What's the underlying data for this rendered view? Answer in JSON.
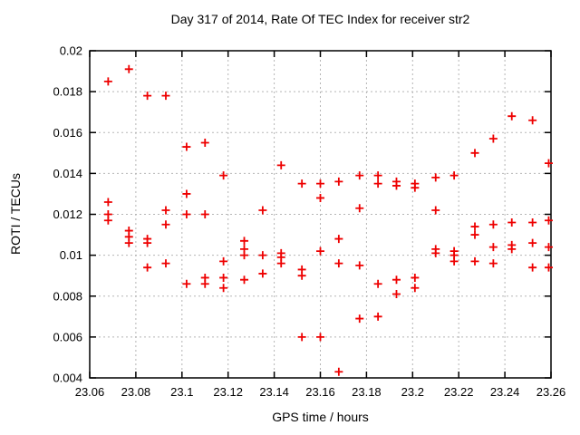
{
  "chart_data": {
    "type": "scatter",
    "title": "Day 317 of 2014, Rate Of TEC Index for receiver str2",
    "xlabel": "GPS time / hours",
    "ylabel": "ROTI / TECUs",
    "xlim": [
      23.06,
      23.26
    ],
    "ylim": [
      0.004,
      0.02
    ],
    "x_tick_values": [
      23.06,
      23.08,
      23.1,
      23.12,
      23.14,
      23.16,
      23.18,
      23.2,
      23.22,
      23.24,
      23.26
    ],
    "x_tick_labels": [
      "23.06",
      "23.08",
      "23.1",
      "23.12",
      "23.14",
      "23.16",
      "23.18",
      "23.2",
      "23.22",
      "23.24",
      "23.26"
    ],
    "y_tick_values": [
      0.004,
      0.006,
      0.008,
      0.01,
      0.012,
      0.014,
      0.016,
      0.018,
      0.02
    ],
    "y_tick_labels": [
      "0.004",
      "0.006",
      "0.008",
      "0.01",
      "0.012",
      "0.014",
      "0.016",
      "0.018",
      "0.02"
    ],
    "grid": true,
    "legend": "none",
    "marker": {
      "shape": "plus",
      "color": "#ee0000",
      "size": 9
    },
    "series": [
      {
        "name": "ROTI",
        "points": [
          [
            23.068,
            0.0185
          ],
          [
            23.068,
            0.0126
          ],
          [
            23.068,
            0.012
          ],
          [
            23.068,
            0.0117
          ],
          [
            23.077,
            0.0191
          ],
          [
            23.077,
            0.0112
          ],
          [
            23.077,
            0.0109
          ],
          [
            23.077,
            0.0106
          ],
          [
            23.085,
            0.0178
          ],
          [
            23.085,
            0.0108
          ],
          [
            23.085,
            0.0106
          ],
          [
            23.085,
            0.0094
          ],
          [
            23.093,
            0.0178
          ],
          [
            23.093,
            0.0122
          ],
          [
            23.093,
            0.0115
          ],
          [
            23.093,
            0.0096
          ],
          [
            23.102,
            0.0153
          ],
          [
            23.102,
            0.013
          ],
          [
            23.102,
            0.012
          ],
          [
            23.102,
            0.0086
          ],
          [
            23.11,
            0.0155
          ],
          [
            23.11,
            0.012
          ],
          [
            23.11,
            0.0089
          ],
          [
            23.11,
            0.0086
          ],
          [
            23.118,
            0.0139
          ],
          [
            23.118,
            0.0097
          ],
          [
            23.118,
            0.0089
          ],
          [
            23.118,
            0.0084
          ],
          [
            23.127,
            0.0107
          ],
          [
            23.127,
            0.0103
          ],
          [
            23.127,
            0.01
          ],
          [
            23.127,
            0.0088
          ],
          [
            23.135,
            0.0122
          ],
          [
            23.135,
            0.01
          ],
          [
            23.135,
            0.0091
          ],
          [
            23.143,
            0.0144
          ],
          [
            23.143,
            0.0101
          ],
          [
            23.143,
            0.0099
          ],
          [
            23.143,
            0.0096
          ],
          [
            23.152,
            0.0135
          ],
          [
            23.152,
            0.0093
          ],
          [
            23.152,
            0.009
          ],
          [
            23.152,
            0.006
          ],
          [
            23.16,
            0.0135
          ],
          [
            23.16,
            0.0128
          ],
          [
            23.16,
            0.0102
          ],
          [
            23.16,
            0.006
          ],
          [
            23.168,
            0.0136
          ],
          [
            23.168,
            0.0108
          ],
          [
            23.168,
            0.0096
          ],
          [
            23.168,
            0.0043
          ],
          [
            23.177,
            0.0139
          ],
          [
            23.177,
            0.0123
          ],
          [
            23.177,
            0.0095
          ],
          [
            23.177,
            0.0069
          ],
          [
            23.185,
            0.0139
          ],
          [
            23.185,
            0.0135
          ],
          [
            23.185,
            0.0086
          ],
          [
            23.185,
            0.007
          ],
          [
            23.193,
            0.0136
          ],
          [
            23.193,
            0.0134
          ],
          [
            23.193,
            0.0088
          ],
          [
            23.193,
            0.0081
          ],
          [
            23.201,
            0.0135
          ],
          [
            23.201,
            0.0133
          ],
          [
            23.201,
            0.0089
          ],
          [
            23.201,
            0.0084
          ],
          [
            23.21,
            0.0138
          ],
          [
            23.21,
            0.0122
          ],
          [
            23.21,
            0.0103
          ],
          [
            23.21,
            0.0101
          ],
          [
            23.218,
            0.0139
          ],
          [
            23.218,
            0.0102
          ],
          [
            23.218,
            0.01
          ],
          [
            23.218,
            0.0097
          ],
          [
            23.227,
            0.015
          ],
          [
            23.227,
            0.0114
          ],
          [
            23.227,
            0.011
          ],
          [
            23.227,
            0.0097
          ],
          [
            23.235,
            0.0157
          ],
          [
            23.235,
            0.0115
          ],
          [
            23.235,
            0.0104
          ],
          [
            23.235,
            0.0096
          ],
          [
            23.243,
            0.0168
          ],
          [
            23.243,
            0.0116
          ],
          [
            23.243,
            0.0105
          ],
          [
            23.243,
            0.0103
          ],
          [
            23.252,
            0.0166
          ],
          [
            23.252,
            0.0116
          ],
          [
            23.252,
            0.0106
          ],
          [
            23.252,
            0.0094
          ],
          [
            23.259,
            0.0145
          ],
          [
            23.259,
            0.0117
          ],
          [
            23.259,
            0.0104
          ],
          [
            23.259,
            0.0094
          ]
        ]
      }
    ]
  }
}
